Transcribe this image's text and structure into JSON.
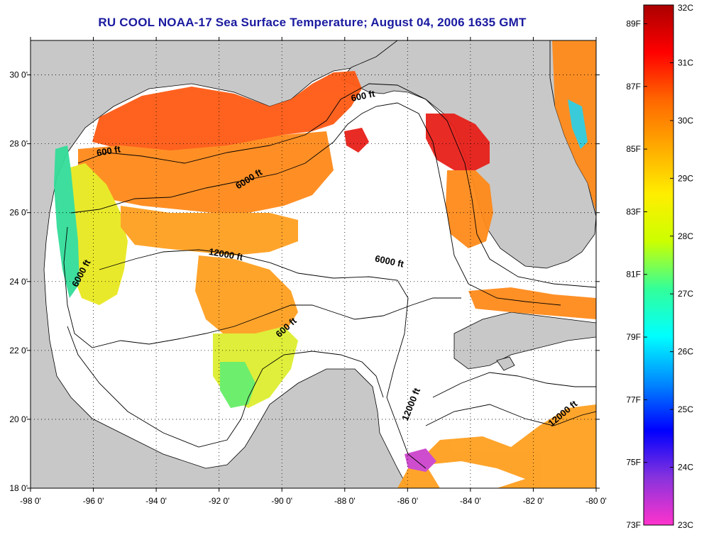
{
  "title": "RU COOL  NOAA-17  Sea Surface Temperature;  August 04, 2006 1635 GMT",
  "map": {
    "lon_range": [
      -98,
      -80
    ],
    "lat_range": [
      18,
      31
    ],
    "lon_ticks": [
      {
        "value": -98,
        "label": "-98 0'"
      },
      {
        "value": -96,
        "label": "-96 0'"
      },
      {
        "value": -94,
        "label": "-94 0'"
      },
      {
        "value": -92,
        "label": "-92 0'"
      },
      {
        "value": -90,
        "label": "-90 0'"
      },
      {
        "value": -88,
        "label": "-88 0'"
      },
      {
        "value": -86,
        "label": "-86 0'"
      },
      {
        "value": -84,
        "label": "-84 0'"
      },
      {
        "value": -82,
        "label": "-82 0'"
      },
      {
        "value": -80,
        "label": "-80 0'"
      }
    ],
    "lat_ticks": [
      {
        "value": 18,
        "label": "18 0'"
      },
      {
        "value": 20,
        "label": "20 0'"
      },
      {
        "value": 22,
        "label": "22 0'"
      },
      {
        "value": 24,
        "label": "24 0'"
      },
      {
        "value": 26,
        "label": "26 0'"
      },
      {
        "value": 28,
        "label": "28 0'"
      },
      {
        "value": 30,
        "label": "30 0'"
      }
    ],
    "grid": "dotted",
    "land_color": "#c8c8c8",
    "water_color": "#ffffff",
    "contour_labels": [
      {
        "text": "600 ft",
        "lon": -95.5,
        "lat": 27.7,
        "angle": -10
      },
      {
        "text": "6000 ft",
        "lon": -91.0,
        "lat": 26.9,
        "angle": -32
      },
      {
        "text": "600 ft",
        "lon": -87.4,
        "lat": 29.3,
        "angle": -12
      },
      {
        "text": "12000 ft",
        "lon": -91.8,
        "lat": 24.7,
        "angle": 10
      },
      {
        "text": "6000 ft",
        "lon": -96.3,
        "lat": 24.2,
        "angle": -62
      },
      {
        "text": "6000 ft",
        "lon": -86.6,
        "lat": 24.5,
        "angle": 12
      },
      {
        "text": "600 ft",
        "lon": -89.8,
        "lat": 22.6,
        "angle": -42
      },
      {
        "text": "12000 ft",
        "lon": -85.8,
        "lat": 20.4,
        "angle": -68
      },
      {
        "text": "12000 ft",
        "lon": -81.0,
        "lat": 20.1,
        "angle": -40
      }
    ]
  },
  "colorbar": {
    "celsius_labels": [
      "32C",
      "31C",
      "30C",
      "29C",
      "28C",
      "27C",
      "26C",
      "25C",
      "24C",
      "23C"
    ],
    "fahrenheit_labels": [
      "89F",
      "87F",
      "85F",
      "83F",
      "81F",
      "79F",
      "77F",
      "75F",
      "73F"
    ],
    "celsius_range": [
      23,
      32
    ],
    "fahrenheit_range": [
      73,
      89.6
    ],
    "colors_bottom_to_top": [
      "#ff33cc",
      "#8833dd",
      "#0000ff",
      "#0088ff",
      "#00ffff",
      "#33ff99",
      "#ccff00",
      "#ffee00",
      "#ffaa00",
      "#ff6600",
      "#ff0000",
      "#aa0000"
    ]
  }
}
